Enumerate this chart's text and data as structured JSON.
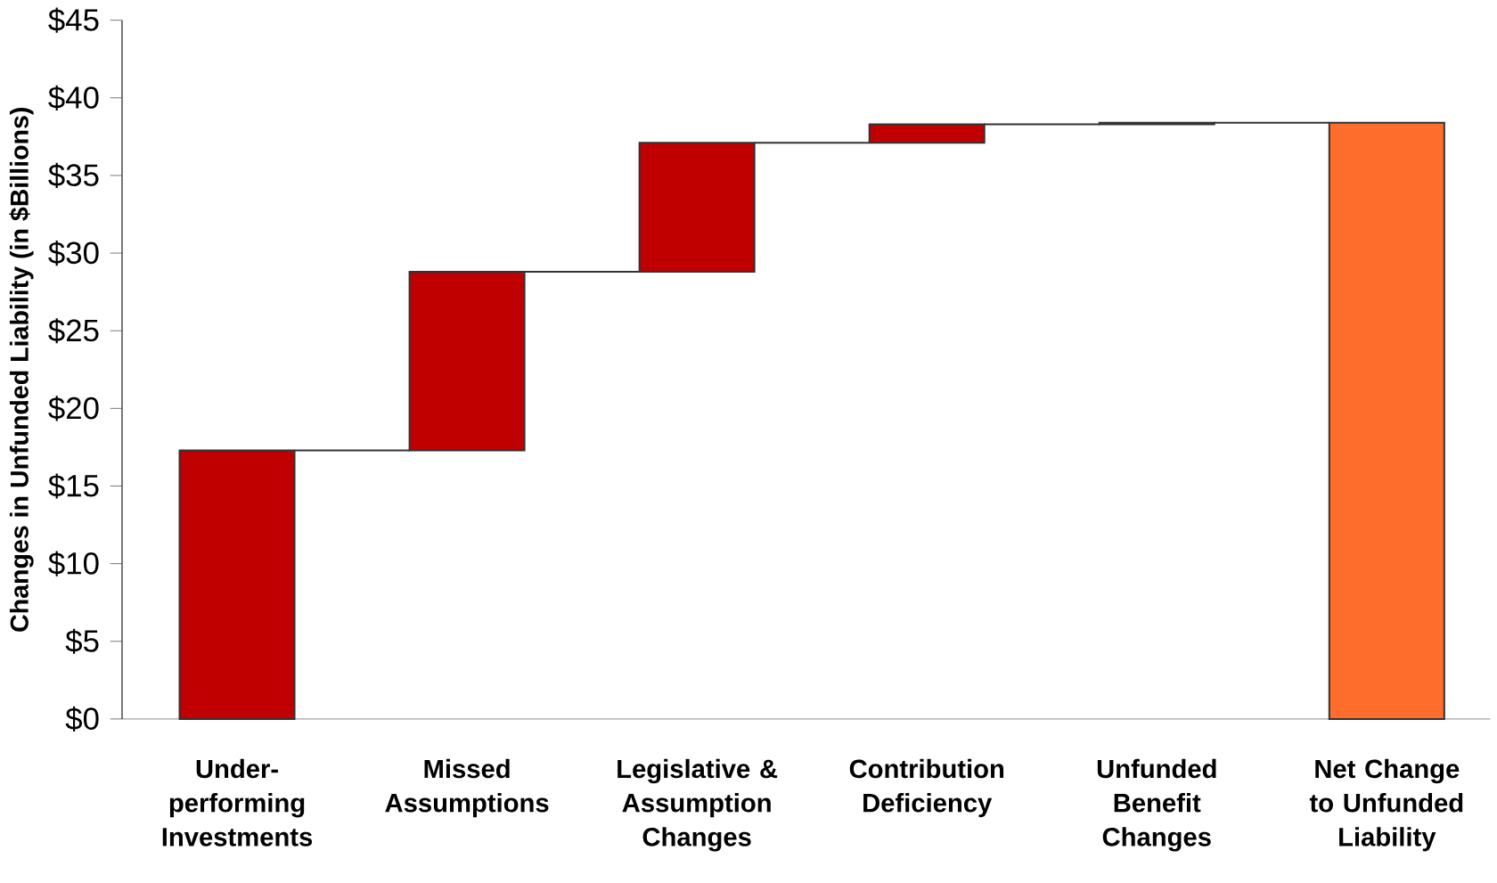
{
  "chart_data": {
    "type": "bar",
    "ylabel": "Changes in Unfunded Liability (in $Billions)",
    "categories": [
      "Under-performing Investments",
      "Missed Assumptions",
      "Legislative & Assumption Changes",
      "Contribution Deficiency",
      "Unfunded Benefit Changes",
      "Net Change to Unfunded Liability"
    ],
    "values": [
      17.3,
      11.5,
      8.3,
      1.2,
      0.1,
      38.4
    ],
    "base": [
      0,
      17.3,
      28.8,
      37.1,
      38.3,
      0
    ],
    "colors": [
      "#c00000",
      "#c00000",
      "#c00000",
      "#c00000",
      "#c00000",
      "#ff6d2d"
    ],
    "ylim": [
      0,
      45
    ],
    "yticks": [
      {
        "value": 0,
        "label": "$0"
      },
      {
        "value": 5,
        "label": "$5"
      },
      {
        "value": 10,
        "label": "$10"
      },
      {
        "value": 15,
        "label": "$15"
      },
      {
        "value": 20,
        "label": "$20"
      },
      {
        "value": 25,
        "label": "$25"
      },
      {
        "value": 30,
        "label": "$30"
      },
      {
        "value": 35,
        "label": "$35"
      },
      {
        "value": 40,
        "label": "$40"
      },
      {
        "value": 45,
        "label": "$45"
      }
    ],
    "grid": false
  }
}
